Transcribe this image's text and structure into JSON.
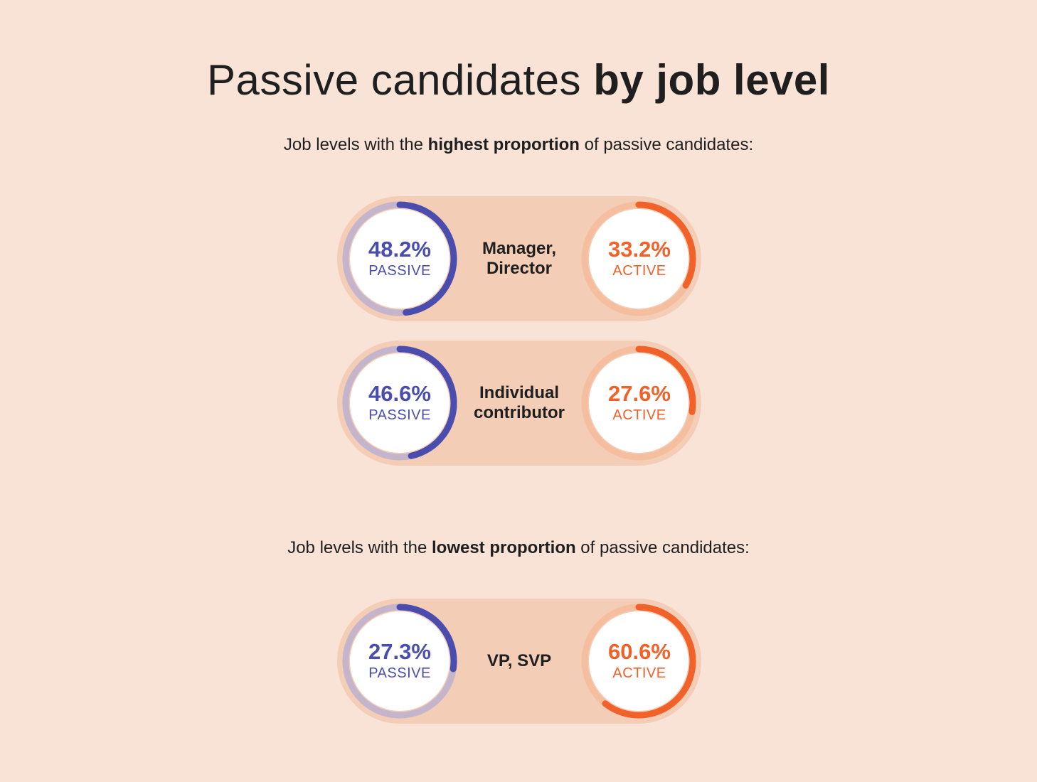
{
  "title": {
    "regular": "Passive candidates ",
    "bold": "by job level"
  },
  "sections": {
    "highest": {
      "pre": "Job levels with the ",
      "bold": "highest proportion",
      "post": " of passive candidates:"
    },
    "lowest": {
      "pre": "Job levels with the ",
      "bold": "lowest proportion",
      "post": " of passive candidates:"
    }
  },
  "colors": {
    "background": "#f8e3d6",
    "pill": "#f3cdb6",
    "passive": "#4a4dae",
    "passive_track": "#c4b4cc",
    "active": "#f0622a",
    "active_track": "#f5bf9f"
  },
  "chart_data": {
    "type": "donut",
    "rows": [
      {
        "level_lines": [
          "Manager,",
          "Director"
        ],
        "passive": 48.2,
        "passive_text": "48.2%",
        "active": 33.2,
        "active_text": "33.2%",
        "group": "highest"
      },
      {
        "level_lines": [
          "Individual",
          "contributor"
        ],
        "passive": 46.6,
        "passive_text": "46.6%",
        "active": 27.6,
        "active_text": "27.6%",
        "group": "highest"
      },
      {
        "level_lines": [
          "VP, SVP"
        ],
        "passive": 27.3,
        "passive_text": "27.3%",
        "active": 60.6,
        "active_text": "60.6%",
        "group": "lowest"
      }
    ],
    "passive_label": "PASSIVE",
    "active_label": "ACTIVE"
  }
}
